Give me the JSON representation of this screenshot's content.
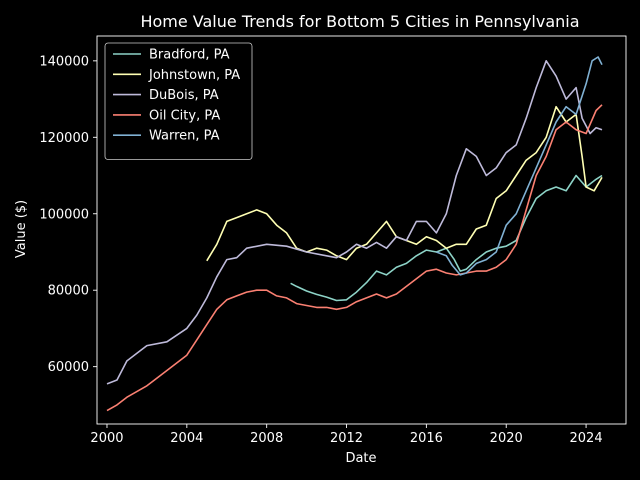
{
  "chart_data": {
    "type": "line",
    "title": "Home Value Trends for Bottom 5 Cities in Pennsylvania",
    "xlabel": "Date",
    "ylabel": "Value ($)",
    "xlim": [
      1999.5,
      2026.0
    ],
    "ylim": [
      45000,
      146500
    ],
    "xticks": [
      2000,
      2004,
      2008,
      2012,
      2016,
      2020,
      2024
    ],
    "yticks": [
      60000,
      80000,
      100000,
      120000,
      140000
    ],
    "grid": false,
    "legend_position": "upper-left",
    "series": [
      {
        "name": "Bradford, PA",
        "color": "#8dd3c7",
        "points": [
          [
            2009.2,
            81800
          ],
          [
            2009.5,
            81000
          ],
          [
            2010.0,
            79800
          ],
          [
            2010.5,
            78900
          ],
          [
            2011.0,
            78200
          ],
          [
            2011.5,
            77300
          ],
          [
            2012.0,
            77500
          ],
          [
            2012.5,
            79500
          ],
          [
            2013.0,
            82000
          ],
          [
            2013.5,
            85000
          ],
          [
            2014.0,
            84000
          ],
          [
            2014.5,
            86000
          ],
          [
            2015.0,
            87000
          ],
          [
            2015.5,
            89000
          ],
          [
            2016.0,
            90500
          ],
          [
            2016.5,
            90000
          ],
          [
            2017.0,
            91000
          ],
          [
            2017.4,
            88000
          ],
          [
            2017.7,
            85000
          ],
          [
            2018.0,
            85500
          ],
          [
            2018.5,
            88000
          ],
          [
            2019.0,
            90000
          ],
          [
            2019.5,
            91000
          ],
          [
            2020.0,
            91500
          ],
          [
            2020.5,
            93000
          ],
          [
            2021.0,
            99000
          ],
          [
            2021.5,
            104000
          ],
          [
            2022.0,
            106000
          ],
          [
            2022.5,
            107000
          ],
          [
            2023.0,
            106000
          ],
          [
            2023.5,
            110000
          ],
          [
            2024.0,
            107000
          ],
          [
            2024.5,
            109000
          ],
          [
            2024.8,
            110000
          ]
        ]
      },
      {
        "name": "Johnstown, PA",
        "color": "#ffffb3",
        "points": [
          [
            2005.0,
            87700
          ],
          [
            2005.5,
            92000
          ],
          [
            2006.0,
            98000
          ],
          [
            2006.5,
            99000
          ],
          [
            2007.0,
            100000
          ],
          [
            2007.5,
            101000
          ],
          [
            2008.0,
            100000
          ],
          [
            2008.5,
            97000
          ],
          [
            2009.0,
            95000
          ],
          [
            2009.5,
            91000
          ],
          [
            2010.0,
            90000
          ],
          [
            2010.5,
            91000
          ],
          [
            2011.0,
            90500
          ],
          [
            2011.5,
            89000
          ],
          [
            2012.0,
            88000
          ],
          [
            2012.5,
            91000
          ],
          [
            2013.0,
            92000
          ],
          [
            2013.5,
            95000
          ],
          [
            2014.0,
            98000
          ],
          [
            2014.5,
            94000
          ],
          [
            2015.0,
            93000
          ],
          [
            2015.5,
            92000
          ],
          [
            2016.0,
            94000
          ],
          [
            2016.5,
            93000
          ],
          [
            2017.0,
            91000
          ],
          [
            2017.5,
            92000
          ],
          [
            2018.0,
            92000
          ],
          [
            2018.5,
            96000
          ],
          [
            2019.0,
            97000
          ],
          [
            2019.5,
            104000
          ],
          [
            2020.0,
            106000
          ],
          [
            2020.5,
            110000
          ],
          [
            2021.0,
            114000
          ],
          [
            2021.5,
            116000
          ],
          [
            2022.0,
            120000
          ],
          [
            2022.5,
            128000
          ],
          [
            2023.0,
            124000
          ],
          [
            2023.5,
            126000
          ],
          [
            2023.8,
            115000
          ],
          [
            2024.0,
            107000
          ],
          [
            2024.4,
            106000
          ],
          [
            2024.8,
            109500
          ]
        ]
      },
      {
        "name": "DuBois, PA",
        "color": "#bebada",
        "points": [
          [
            2000.0,
            55500
          ],
          [
            2000.5,
            56500
          ],
          [
            2001.0,
            61500
          ],
          [
            2001.5,
            63500
          ],
          [
            2002.0,
            65500
          ],
          [
            2003.0,
            66500
          ],
          [
            2004.0,
            70000
          ],
          [
            2004.5,
            73500
          ],
          [
            2005.0,
            78000
          ],
          [
            2005.5,
            83500
          ],
          [
            2006.0,
            88000
          ],
          [
            2006.5,
            88500
          ],
          [
            2007.0,
            91000
          ],
          [
            2008.0,
            92000
          ],
          [
            2009.0,
            91500
          ],
          [
            2010.0,
            90000
          ],
          [
            2011.0,
            89000
          ],
          [
            2011.5,
            88500
          ],
          [
            2012.0,
            90000
          ],
          [
            2012.5,
            92000
          ],
          [
            2013.0,
            91000
          ],
          [
            2013.5,
            92500
          ],
          [
            2014.0,
            91000
          ],
          [
            2014.5,
            94000
          ],
          [
            2015.0,
            93000
          ],
          [
            2015.5,
            98000
          ],
          [
            2016.0,
            98000
          ],
          [
            2016.5,
            95000
          ],
          [
            2017.0,
            100000
          ],
          [
            2017.5,
            110000
          ],
          [
            2018.0,
            117000
          ],
          [
            2018.5,
            115000
          ],
          [
            2019.0,
            110000
          ],
          [
            2019.5,
            112000
          ],
          [
            2020.0,
            116000
          ],
          [
            2020.5,
            118000
          ],
          [
            2021.0,
            125000
          ],
          [
            2021.5,
            133000
          ],
          [
            2022.0,
            140000
          ],
          [
            2022.5,
            136000
          ],
          [
            2023.0,
            130000
          ],
          [
            2023.5,
            133000
          ],
          [
            2023.8,
            125000
          ],
          [
            2024.2,
            121000
          ],
          [
            2024.5,
            122500
          ],
          [
            2024.8,
            122000
          ]
        ]
      },
      {
        "name": "Oil City, PA",
        "color": "#fb8072",
        "points": [
          [
            2000.0,
            48500
          ],
          [
            2000.5,
            50000
          ],
          [
            2001.0,
            52000
          ],
          [
            2002.0,
            55000
          ],
          [
            2003.0,
            59000
          ],
          [
            2004.0,
            63000
          ],
          [
            2004.5,
            67000
          ],
          [
            2005.0,
            71000
          ],
          [
            2005.5,
            75000
          ],
          [
            2006.0,
            77500
          ],
          [
            2006.5,
            78500
          ],
          [
            2007.0,
            79500
          ],
          [
            2007.5,
            80000
          ],
          [
            2008.0,
            80000
          ],
          [
            2008.5,
            78500
          ],
          [
            2009.0,
            78000
          ],
          [
            2009.5,
            76500
          ],
          [
            2010.0,
            76000
          ],
          [
            2010.5,
            75500
          ],
          [
            2011.0,
            75500
          ],
          [
            2011.5,
            75000
          ],
          [
            2012.0,
            75500
          ],
          [
            2012.5,
            77000
          ],
          [
            2013.0,
            78000
          ],
          [
            2013.5,
            79000
          ],
          [
            2014.0,
            78000
          ],
          [
            2014.5,
            79000
          ],
          [
            2015.0,
            81000
          ],
          [
            2015.5,
            83000
          ],
          [
            2016.0,
            85000
          ],
          [
            2016.5,
            85500
          ],
          [
            2017.0,
            84500
          ],
          [
            2017.5,
            84000
          ],
          [
            2018.0,
            84500
          ],
          [
            2018.5,
            85000
          ],
          [
            2019.0,
            85000
          ],
          [
            2019.5,
            86000
          ],
          [
            2020.0,
            88000
          ],
          [
            2020.5,
            92000
          ],
          [
            2021.0,
            101000
          ],
          [
            2021.5,
            110000
          ],
          [
            2022.0,
            115000
          ],
          [
            2022.5,
            122000
          ],
          [
            2023.0,
            124000
          ],
          [
            2023.5,
            122000
          ],
          [
            2024.0,
            121000
          ],
          [
            2024.5,
            127000
          ],
          [
            2024.8,
            128500
          ]
        ]
      },
      {
        "name": "Warren, PA",
        "color": "#80b1d3",
        "points": [
          [
            2016.5,
            90000
          ],
          [
            2017.0,
            89000
          ],
          [
            2017.3,
            86500
          ],
          [
            2017.7,
            84000
          ],
          [
            2018.0,
            84500
          ],
          [
            2018.5,
            87000
          ],
          [
            2019.0,
            88000
          ],
          [
            2019.5,
            90000
          ],
          [
            2020.0,
            97000
          ],
          [
            2020.5,
            100000
          ],
          [
            2021.0,
            106000
          ],
          [
            2021.5,
            112000
          ],
          [
            2022.0,
            118000
          ],
          [
            2022.5,
            124000
          ],
          [
            2023.0,
            128000
          ],
          [
            2023.5,
            126000
          ],
          [
            2024.0,
            134000
          ],
          [
            2024.3,
            140000
          ],
          [
            2024.6,
            141000
          ],
          [
            2024.8,
            139000
          ]
        ]
      }
    ]
  }
}
